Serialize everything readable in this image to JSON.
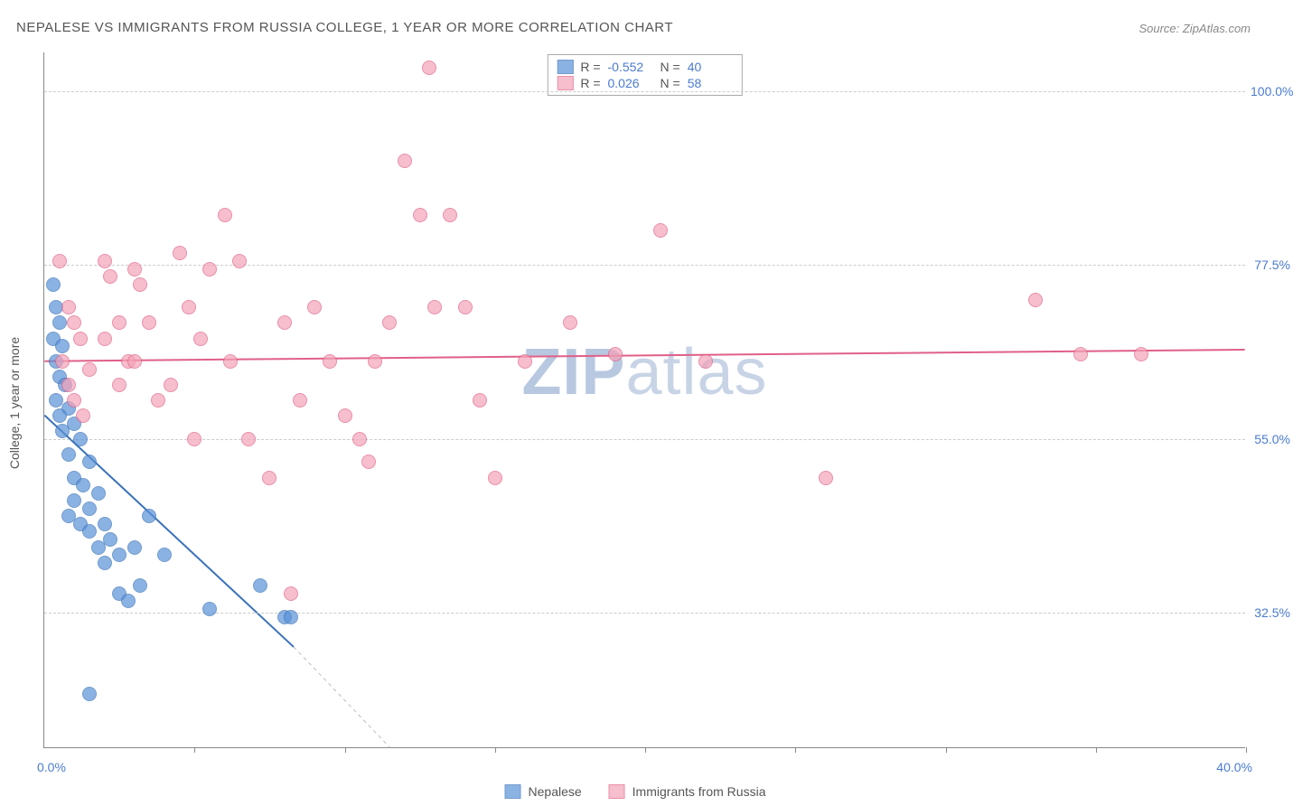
{
  "title": "NEPALESE VS IMMIGRANTS FROM RUSSIA COLLEGE, 1 YEAR OR MORE CORRELATION CHART",
  "source": "Source: ZipAtlas.com",
  "ylabel": "College, 1 year or more",
  "watermark_bold": "ZIP",
  "watermark_rest": "atlas",
  "chart": {
    "type": "scatter",
    "xlim": [
      0,
      40
    ],
    "ylim": [
      15,
      105
    ],
    "x_start_label": "0.0%",
    "x_end_label": "40.0%",
    "x_ticks": [
      5,
      10,
      15,
      20,
      25,
      30,
      35,
      40
    ],
    "y_gridlines": [
      32.5,
      55.0,
      77.5,
      100.0
    ],
    "y_tick_labels": [
      "32.5%",
      "55.0%",
      "77.5%",
      "100.0%"
    ],
    "background_color": "#ffffff",
    "grid_color": "#cccccc",
    "axis_color": "#888888",
    "tick_label_color": "#4a7bd0",
    "marker_radius": 8,
    "marker_stroke_width": 1.2,
    "marker_fill_opacity": 0.35,
    "series": [
      {
        "name": "Nepalese",
        "color": "#5a92d8",
        "stroke": "#3a72b8",
        "R": "-0.552",
        "N": "40",
        "trend": {
          "x1": 0,
          "y1": 58,
          "x2": 8.3,
          "y2": 28,
          "dash_to_x": 11.5,
          "dash_to_y": 15
        },
        "points": [
          [
            0.3,
            75
          ],
          [
            0.4,
            72
          ],
          [
            0.5,
            70
          ],
          [
            0.3,
            68
          ],
          [
            0.6,
            67
          ],
          [
            0.4,
            65
          ],
          [
            0.5,
            63
          ],
          [
            0.7,
            62
          ],
          [
            0.4,
            60
          ],
          [
            0.8,
            59
          ],
          [
            0.5,
            58
          ],
          [
            1.0,
            57
          ],
          [
            0.6,
            56
          ],
          [
            1.2,
            55
          ],
          [
            0.8,
            53
          ],
          [
            1.5,
            52
          ],
          [
            1.0,
            50
          ],
          [
            1.3,
            49
          ],
          [
            1.8,
            48
          ],
          [
            1.0,
            47
          ],
          [
            1.5,
            46
          ],
          [
            0.8,
            45
          ],
          [
            1.2,
            44
          ],
          [
            2.0,
            44
          ],
          [
            1.5,
            43
          ],
          [
            2.2,
            42
          ],
          [
            1.8,
            41
          ],
          [
            2.5,
            40
          ],
          [
            2.0,
            39
          ],
          [
            3.0,
            41
          ],
          [
            3.5,
            45
          ],
          [
            4.0,
            40
          ],
          [
            2.5,
            35
          ],
          [
            3.2,
            36
          ],
          [
            2.8,
            34
          ],
          [
            7.2,
            36
          ],
          [
            8.0,
            32
          ],
          [
            8.2,
            32
          ],
          [
            5.5,
            33
          ],
          [
            1.5,
            22
          ]
        ]
      },
      {
        "name": "Immigrants from Russia",
        "color": "#f5a3b8",
        "stroke": "#e06088",
        "R": "0.026",
        "N": "58",
        "trend": {
          "x1": 0,
          "y1": 65,
          "x2": 40,
          "y2": 66.5
        },
        "points": [
          [
            0.5,
            78
          ],
          [
            0.8,
            72
          ],
          [
            1.0,
            70
          ],
          [
            1.2,
            68
          ],
          [
            0.6,
            65
          ],
          [
            1.5,
            64
          ],
          [
            0.8,
            62
          ],
          [
            1.0,
            60
          ],
          [
            1.3,
            58
          ],
          [
            2.0,
            78
          ],
          [
            2.2,
            76
          ],
          [
            2.5,
            70
          ],
          [
            2.0,
            68
          ],
          [
            2.8,
            65
          ],
          [
            2.5,
            62
          ],
          [
            3.0,
            77
          ],
          [
            3.2,
            75
          ],
          [
            3.5,
            70
          ],
          [
            3.0,
            65
          ],
          [
            3.8,
            60
          ],
          [
            4.5,
            79
          ],
          [
            4.8,
            72
          ],
          [
            4.2,
            62
          ],
          [
            5.0,
            55
          ],
          [
            5.5,
            77
          ],
          [
            5.2,
            68
          ],
          [
            6.0,
            84
          ],
          [
            6.5,
            78
          ],
          [
            6.2,
            65
          ],
          [
            6.8,
            55
          ],
          [
            7.5,
            50
          ],
          [
            8.0,
            70
          ],
          [
            8.5,
            60
          ],
          [
            8.2,
            35
          ],
          [
            9.0,
            72
          ],
          [
            9.5,
            65
          ],
          [
            10.0,
            58
          ],
          [
            10.5,
            55
          ],
          [
            10.8,
            52
          ],
          [
            11.5,
            70
          ],
          [
            11.0,
            65
          ],
          [
            12.0,
            91
          ],
          [
            12.5,
            84
          ],
          [
            12.8,
            103
          ],
          [
            13.0,
            72
          ],
          [
            13.5,
            84
          ],
          [
            14.0,
            72
          ],
          [
            14.5,
            60
          ],
          [
            15.0,
            50
          ],
          [
            16.0,
            65
          ],
          [
            17.5,
            70
          ],
          [
            19.0,
            66
          ],
          [
            20.5,
            82
          ],
          [
            22.0,
            65
          ],
          [
            26.0,
            50
          ],
          [
            33.0,
            73
          ],
          [
            34.5,
            66
          ],
          [
            36.5,
            66
          ]
        ]
      }
    ]
  },
  "stats_legend": {
    "R_label": "R =",
    "N_label": "N ="
  },
  "bottom_legend": {
    "items": [
      "Nepalese",
      "Immigrants from Russia"
    ]
  }
}
